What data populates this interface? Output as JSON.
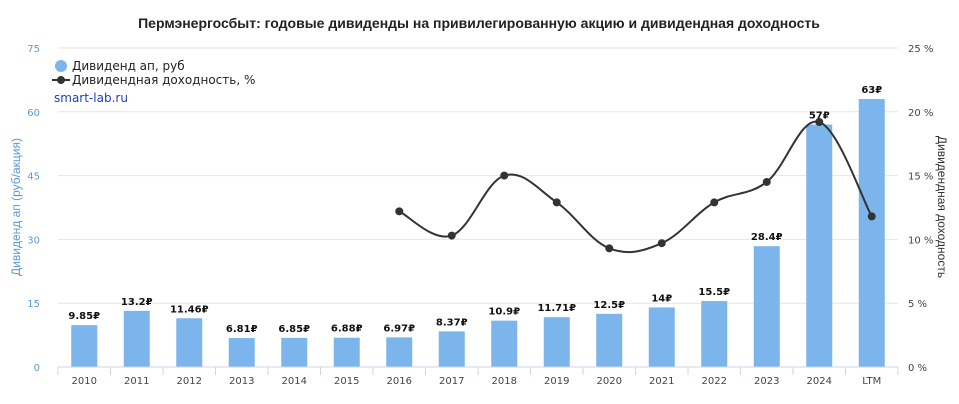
{
  "chart_data": {
    "type": "bar",
    "title": "Пермэнергосбыт: годовые дивиденды на привилегированную акцию и дивидендная доходность",
    "watermark": "smart-lab.ru",
    "categories": [
      "2010",
      "2011",
      "2012",
      "2013",
      "2014",
      "2015",
      "2016",
      "2017",
      "2018",
      "2019",
      "2020",
      "2021",
      "2022",
      "2023",
      "2024",
      "LTM"
    ],
    "series": [
      {
        "name": "Дивиденд ап, руб",
        "type": "bar",
        "axis": "left",
        "color": "#7cb5ec",
        "values": [
          9.85,
          13.2,
          11.46,
          6.81,
          6.85,
          6.88,
          6.97,
          8.37,
          10.9,
          11.71,
          12.5,
          14,
          15.5,
          28.4,
          57,
          63
        ],
        "labels": [
          "9.85₽",
          "13.2₽",
          "11.46₽",
          "6.81₽",
          "6.85₽",
          "6.88₽",
          "6.97₽",
          "8.37₽",
          "10.9₽",
          "11.71₽",
          "12.5₽",
          "14₽",
          "15.5₽",
          "28.4₽",
          "57₽",
          "63₽"
        ]
      },
      {
        "name": "Дивидендная доходность, %",
        "type": "line",
        "axis": "right",
        "color": "#333333",
        "values": [
          null,
          null,
          null,
          null,
          null,
          null,
          12.2,
          10.3,
          15.0,
          12.9,
          9.3,
          9.7,
          12.9,
          14.5,
          19.2,
          11.8
        ]
      }
    ],
    "left_axis": {
      "label": "Дивиденд ап (руб/акция)",
      "ylim": [
        0,
        75
      ],
      "ticks": [
        "0",
        "15",
        "30",
        "45",
        "60",
        "75"
      ],
      "tick_values": [
        0,
        15,
        30,
        45,
        60,
        75
      ]
    },
    "right_axis": {
      "label": "Дивидендная доходность",
      "ylim": [
        0,
        25
      ],
      "ticks": [
        "0 %",
        "5 %",
        "10 %",
        "15 %",
        "20 %",
        "25 %"
      ],
      "tick_values": [
        0,
        5,
        10,
        15,
        20,
        25
      ]
    },
    "grid": true,
    "legend_position": "top-left"
  }
}
